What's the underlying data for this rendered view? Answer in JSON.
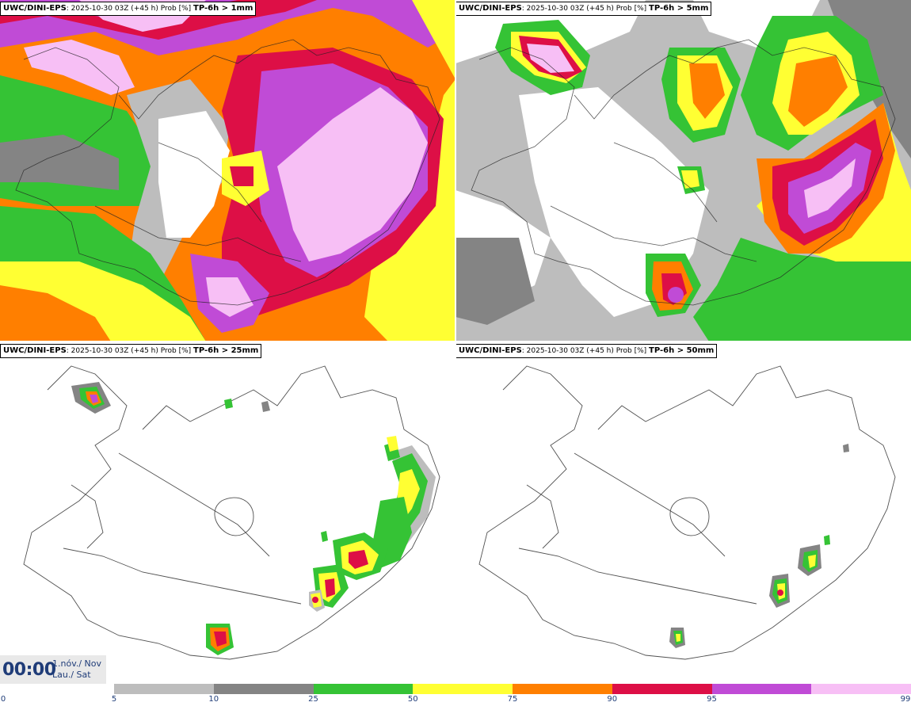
{
  "panels": [
    {
      "model": "UWC/DINI-EPS",
      "meta": ": 2025-10-30 03Z (+45 h) Prob [%]",
      "param": "TP-6h > 1mm"
    },
    {
      "model": "UWC/DINI-EPS",
      "meta": ": 2025-10-30 03Z (+45 h) Prob [%]",
      "param": "TP-6h > 5mm"
    },
    {
      "model": "UWC/DINI-EPS",
      "meta": ": 2025-10-30 03Z (+45 h) Prob [%]",
      "param": "TP-6h > 25mm"
    },
    {
      "model": "UWC/DINI-EPS",
      "meta": ": 2025-10-30 03Z (+45 h) Prob [%]",
      "param": "TP-6h > 50mm"
    }
  ],
  "time": {
    "clock": "00:00",
    "date_line1": "1.nóv./ Nov",
    "date_line2": "Lau./ Sat"
  },
  "legend": {
    "ticks": [
      "0",
      "5",
      "10",
      "25",
      "50",
      "75",
      "90",
      "95",
      "99"
    ],
    "colors": [
      "#bdbdbd",
      "#848484",
      "#35c335",
      "#ffff33",
      "#ff7f00",
      "#dd0f46",
      "#c04bd6",
      "#f7bff5"
    ]
  },
  "palette": {
    "grey_light": "#bdbdbd",
    "grey_dark": "#848484",
    "green": "#35c335",
    "yellow": "#ffff33",
    "orange": "#ff7f00",
    "red": "#dd0f46",
    "purple": "#c04bd6",
    "pink": "#f7bff5"
  }
}
